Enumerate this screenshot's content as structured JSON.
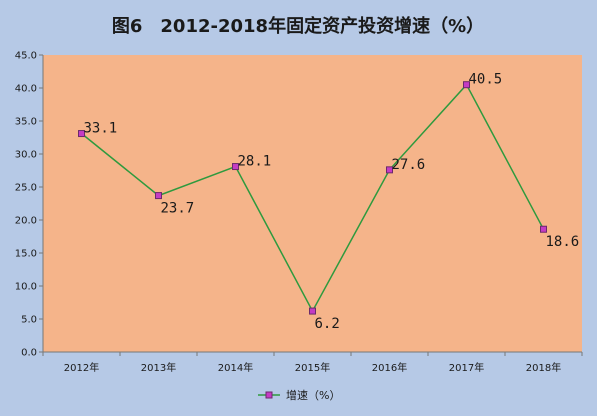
{
  "chart_data": {
    "type": "line",
    "title": "图6　2012-2018年固定资产投资增速（%）",
    "categories": [
      "2012年",
      "2013年",
      "2014年",
      "2015年",
      "2016年",
      "2017年",
      "2018年"
    ],
    "series": [
      {
        "name": "增速（%）",
        "values": [
          33.1,
          23.7,
          28.1,
          6.2,
          27.6,
          40.5,
          18.6
        ],
        "value_labels": [
          "33.1",
          "23.7",
          "28.1",
          "6.2",
          "27.6",
          "40.5",
          "18.6"
        ]
      }
    ],
    "y_ticks": [
      "0.0",
      "5.0",
      "10.0",
      "15.0",
      "20.0",
      "25.0",
      "30.0",
      "35.0",
      "40.0",
      "45.0"
    ],
    "ylim": [
      0,
      45
    ],
    "grid": false,
    "legend_position": "bottom",
    "colors": {
      "outer_background": "#b6c9e6",
      "plot_background": "#f5b48a",
      "line": "#2e9a3e",
      "marker_fill": "#c43cc4",
      "marker_stroke": "#6b2a6b",
      "text": "#1a1a1a"
    }
  }
}
